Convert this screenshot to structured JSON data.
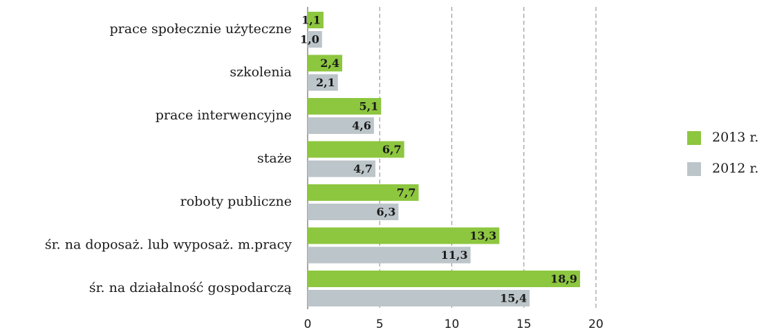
{
  "chart_data": {
    "type": "hbar",
    "categories": [
      "prace społecznie użyteczne",
      "szkolenia",
      "prace interwencyjne",
      "staże",
      "roboty publiczne",
      "śr. na doposaż. lub wyposaż. m.pracy",
      "śr. na działalność gospodarczą"
    ],
    "series": [
      {
        "name": "2013 r.",
        "color": "#8dc63f",
        "values": [
          1.1,
          2.4,
          5.1,
          6.7,
          7.7,
          13.3,
          18.9
        ],
        "value_labels": [
          "1,1",
          "2,4",
          "5,1",
          "6,7",
          "7,7",
          "13,3",
          "18,9"
        ]
      },
      {
        "name": "2012 r.",
        "color": "#bcc5c9",
        "values": [
          1.0,
          2.1,
          4.6,
          4.7,
          6.3,
          11.3,
          15.4
        ],
        "value_labels": [
          "1,0",
          "2,1",
          "4,6",
          "4,7",
          "6,3",
          "11,3",
          "15,4"
        ]
      }
    ],
    "xlim": [
      0,
      20
    ],
    "xticks": [
      0,
      5,
      10,
      15,
      20
    ],
    "grid": true,
    "legend": "right"
  }
}
